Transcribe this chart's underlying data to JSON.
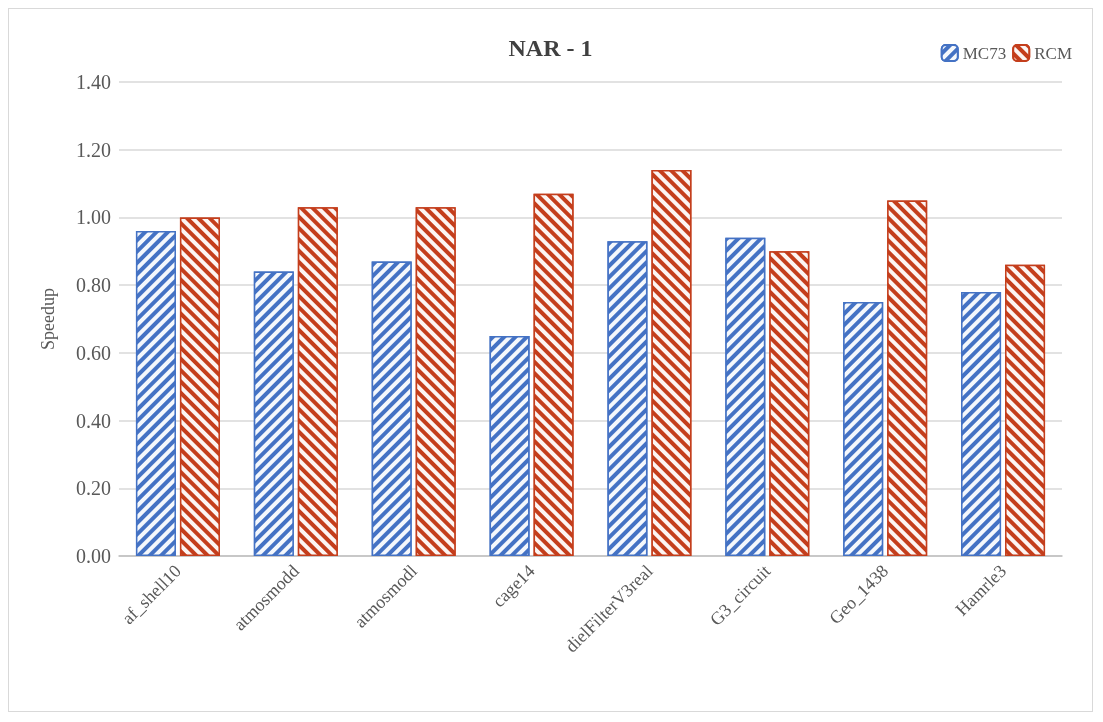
{
  "chart_data": {
    "type": "bar",
    "title": "NAR - 1",
    "ylabel": "Speedup",
    "categories": [
      "af_shell10",
      "atmosmodd",
      "atmosmodl",
      "cage14",
      "dielFilterV3real",
      "G3_circuit",
      "Geo_1438",
      "Hamrle3"
    ],
    "series": [
      {
        "name": "MC73",
        "color": "#4472c4",
        "values": [
          0.96,
          0.84,
          0.87,
          0.65,
          0.93,
          0.94,
          0.75,
          0.78
        ]
      },
      {
        "name": "RCM",
        "color": "#c43e1c",
        "values": [
          1.0,
          1.03,
          1.03,
          1.07,
          1.14,
          0.9,
          1.05,
          0.86
        ]
      }
    ],
    "ylim": [
      0,
      1.4
    ],
    "yticks": [
      {
        "value": 0,
        "label": "0.00"
      },
      {
        "value": 0.2,
        "label": "0.20"
      },
      {
        "value": 0.4,
        "label": "0.40"
      },
      {
        "value": 0.6,
        "label": "0.60"
      },
      {
        "value": 0.8,
        "label": "0.80"
      },
      {
        "value": 1,
        "label": "1.00"
      },
      {
        "value": 1.2,
        "label": "1.20"
      },
      {
        "value": 1.4,
        "label": "1.40"
      }
    ],
    "grid": "y",
    "legend": "top right"
  }
}
